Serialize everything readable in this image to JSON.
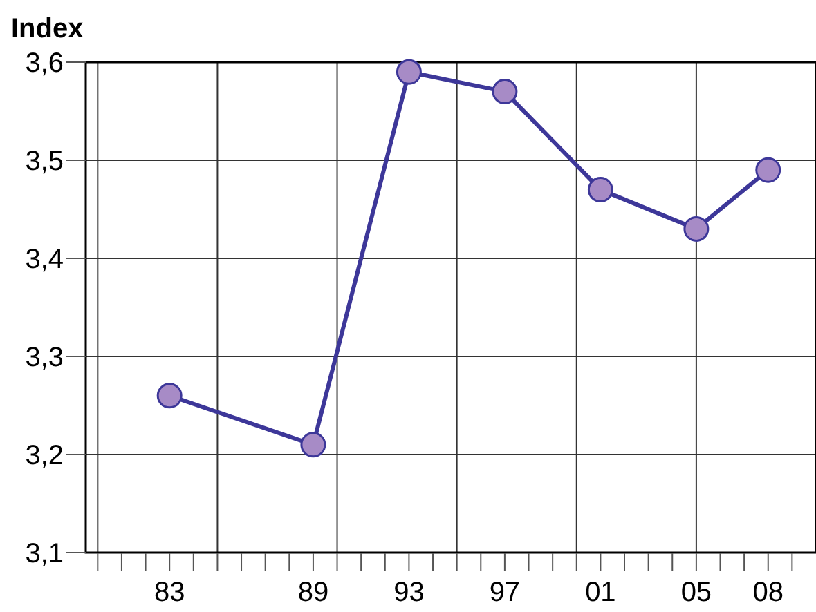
{
  "chart_data": {
    "type": "line",
    "title": "Index",
    "x": [
      1983,
      1989,
      1993,
      1997,
      2001,
      2005,
      2008
    ],
    "series": [
      {
        "color": "#3d3799",
        "values": [
          3.26,
          3.21,
          3.59,
          3.57,
          3.47,
          3.43,
          3.49
        ]
      }
    ],
    "xlim": [
      1979.5,
      2010
    ],
    "xticks": [
      {
        "value": 1980,
        "label": null
      },
      {
        "value": 1981,
        "label": null
      },
      {
        "value": 1982,
        "label": null
      },
      {
        "value": 1983,
        "label": "83"
      },
      {
        "value": 1984,
        "label": null
      },
      {
        "value": 1985,
        "label": null
      },
      {
        "value": 1986,
        "label": null
      },
      {
        "value": 1987,
        "label": null
      },
      {
        "value": 1988,
        "label": null
      },
      {
        "value": 1989,
        "label": "89"
      },
      {
        "value": 1990,
        "label": null
      },
      {
        "value": 1991,
        "label": null
      },
      {
        "value": 1992,
        "label": null
      },
      {
        "value": 1993,
        "label": "93"
      },
      {
        "value": 1994,
        "label": null
      },
      {
        "value": 1995,
        "label": null
      },
      {
        "value": 1996,
        "label": null
      },
      {
        "value": 1997,
        "label": "97"
      },
      {
        "value": 1998,
        "label": null
      },
      {
        "value": 1999,
        "label": null
      },
      {
        "value": 2000,
        "label": null
      },
      {
        "value": 2001,
        "label": "01"
      },
      {
        "value": 2002,
        "label": null
      },
      {
        "value": 2003,
        "label": null
      },
      {
        "value": 2004,
        "label": null
      },
      {
        "value": 2005,
        "label": "05"
      },
      {
        "value": 2006,
        "label": null
      },
      {
        "value": 2007,
        "label": null
      },
      {
        "value": 2008,
        "label": "08"
      },
      {
        "value": 2009,
        "label": null
      }
    ],
    "ylim": [
      3.1,
      3.6
    ],
    "yticks": [
      {
        "value": 3.1,
        "label": "3,1"
      },
      {
        "value": 3.2,
        "label": "3,2"
      },
      {
        "value": 3.3,
        "label": "3,3"
      },
      {
        "value": 3.4,
        "label": "3,4"
      },
      {
        "value": 3.5,
        "label": "3,5"
      },
      {
        "value": 3.6,
        "label": "3,6"
      }
    ],
    "grid": true,
    "marker": "circle",
    "line_style": "solid"
  }
}
